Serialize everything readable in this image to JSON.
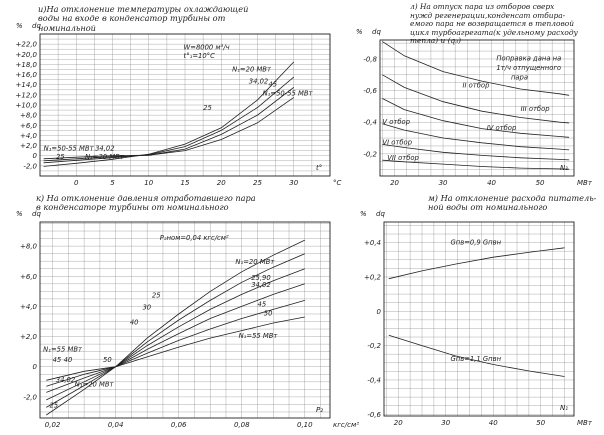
{
  "chart_data": [
    {
      "type": "line",
      "caption": [
        "и)На отклонение температуры охлаждающей",
        "воды на входе  в конденсатор турбины от",
        "номинальной"
      ],
      "y_unit": "%",
      "y_var": "dq",
      "x_var": "t°",
      "x_unit": "°C",
      "xlim": [
        -5,
        35
      ],
      "ylim": [
        -4,
        24
      ],
      "xticks": [
        0,
        5,
        10,
        15,
        20,
        25,
        30
      ],
      "xtick_labels": [
        "0",
        "5",
        "10",
        "15",
        "20",
        "25",
        "30"
      ],
      "yticks": [
        -2,
        0,
        2,
        4,
        6,
        8,
        10,
        12,
        14,
        16,
        18,
        20,
        22
      ],
      "ytick_labels": [
        "-2,0",
        "0",
        "+2,0",
        "+4,0",
        "+6,0",
        "+8,0",
        "+10,0",
        "+12,0",
        "+14,0",
        "+16,0",
        "+18,0",
        "+20,0",
        "+22,0"
      ],
      "grid": true,
      "annotations": [
        {
          "text": "W=8000 м³/ч",
          "x": 14.8,
          "y": 20.9
        },
        {
          "text": "t°₁=10°C",
          "x": 14.8,
          "y": 19.3
        },
        {
          "text": "N₁=20 МВт",
          "x": 21.5,
          "y": 16.6
        },
        {
          "text": "34,02",
          "x": 23.8,
          "y": 14.2
        },
        {
          "text": "N₁=50-55 МВт",
          "x": 25.7,
          "y": 11.9
        },
        {
          "text": "45",
          "x": 26.5,
          "y": 13.6
        },
        {
          "text": "25",
          "x": 17.5,
          "y": 9.0
        },
        {
          "text": "N₁=50-55 МВт",
          "x": -4.5,
          "y": 1.0
        },
        {
          "text": "34,02",
          "x": 2.6,
          "y": 1.0
        },
        {
          "text": "25",
          "x": -2.8,
          "y": -0.6
        },
        {
          "text": "N₁=20 МВт",
          "x": 1.2,
          "y": -0.6
        }
      ],
      "series": [
        {
          "x": [
            -4.5,
            0,
            5,
            10,
            15,
            20,
            25,
            30
          ],
          "values": [
            -2.1,
            -1.5,
            -0.7,
            0.3,
            2.3,
            5.5,
            11,
            18.5
          ]
        },
        {
          "x": [
            -4.5,
            0,
            5,
            10,
            15,
            20,
            25,
            30
          ],
          "values": [
            -1.4,
            -0.9,
            -0.4,
            0.2,
            1.8,
            5,
            9.5,
            15.5
          ]
        },
        {
          "x": [
            -4.5,
            0,
            5,
            10,
            15,
            20,
            25,
            30
          ],
          "values": [
            -1.0,
            -0.6,
            -0.2,
            0.1,
            1.3,
            4.2,
            8,
            13.5
          ]
        },
        {
          "x": [
            -4.5,
            0,
            5,
            10,
            15,
            20,
            25,
            30
          ],
          "values": [
            -0.6,
            -0.3,
            0,
            0.1,
            1,
            3.2,
            6.5,
            11.5
          ]
        }
      ]
    },
    {
      "type": "line",
      "caption": [
        "л) На отпуск пара из отборов сверх",
        "нужд регенерации,конденсат отбира-",
        "емого пара не возвращается в тепловой",
        "цикл турбоагрегата(к удельному расходу",
        "тепла) и (q₃)"
      ],
      "y_unit": "%",
      "y_var": "dq",
      "x_var": "N₁",
      "x_unit": "МВт",
      "xlim": [
        17,
        57
      ],
      "ylim": [
        -0.06,
        -0.92
      ],
      "xticks": [
        20,
        30,
        40,
        50
      ],
      "xtick_labels": [
        "20",
        "30",
        "40",
        "50"
      ],
      "yticks": [
        -0.2,
        -0.4,
        -0.6,
        -0.8
      ],
      "ytick_labels": [
        "-0,2",
        "-0,4",
        "-0,6",
        "-0,8"
      ],
      "grid": true,
      "annotations": [
        {
          "text": "Поправка дана на",
          "x": 41,
          "y": -0.79
        },
        {
          "text": "1т/ч отпущенного",
          "x": 41,
          "y": -0.73
        },
        {
          "text": "пара",
          "x": 44,
          "y": -0.67
        },
        {
          "text": "II отбор",
          "x": 34,
          "y": -0.62
        },
        {
          "text": "III отбор",
          "x": 46,
          "y": -0.47
        },
        {
          "text": "IV отбор",
          "x": 39,
          "y": -0.35
        },
        {
          "text": "V отбор",
          "x": 17.5,
          "y": -0.39
        },
        {
          "text": "VI отбор",
          "x": 17.5,
          "y": -0.26
        },
        {
          "text": "VII отбор",
          "x": 18.5,
          "y": -0.16
        }
      ],
      "series": [
        {
          "x": [
            17.5,
            22,
            30,
            38,
            46,
            54,
            56
          ],
          "values": [
            -0.91,
            -0.82,
            -0.72,
            -0.66,
            -0.61,
            -0.58,
            -0.57
          ]
        },
        {
          "x": [
            17.5,
            22,
            30,
            38,
            46,
            54,
            56
          ],
          "values": [
            -0.7,
            -0.62,
            -0.53,
            -0.47,
            -0.43,
            -0.4,
            -0.395
          ]
        },
        {
          "x": [
            17.5,
            22,
            30,
            38,
            46,
            54,
            56
          ],
          "values": [
            -0.55,
            -0.48,
            -0.41,
            -0.36,
            -0.33,
            -0.31,
            -0.305
          ]
        },
        {
          "x": [
            17.5,
            22,
            30,
            38,
            46,
            54,
            56
          ],
          "values": [
            -0.39,
            -0.35,
            -0.3,
            -0.27,
            -0.245,
            -0.23,
            -0.225
          ]
        },
        {
          "x": [
            17.5,
            22,
            30,
            38,
            46,
            54,
            56
          ],
          "values": [
            -0.26,
            -0.24,
            -0.21,
            -0.19,
            -0.175,
            -0.165,
            -0.162
          ]
        },
        {
          "x": [
            17.5,
            22,
            30,
            38,
            46,
            54,
            56
          ],
          "values": [
            -0.16,
            -0.15,
            -0.135,
            -0.12,
            -0.11,
            -0.105,
            -0.103
          ]
        }
      ]
    },
    {
      "type": "line",
      "caption": [
        "к) На отклонение давления отработавшего пара",
        "в конденсаторе турбины от номинального"
      ],
      "y_unit": "%",
      "y_var": "dq",
      "x_var": "P₂",
      "x_unit": "кгс/см²",
      "xlim": [
        0.016,
        0.108
      ],
      "ylim": [
        -3.4,
        9.6
      ],
      "xticks": [
        0.02,
        0.04,
        0.06,
        0.08,
        0.1
      ],
      "xtick_labels": [
        "0,02",
        "0,04",
        "0,06",
        "0,08",
        "0,10"
      ],
      "yticks": [
        -2,
        0,
        2,
        4,
        6,
        8
      ],
      "ytick_labels": [
        "-2,0",
        "0",
        "+2,0",
        "+4,0",
        "+6,0",
        "+8,0"
      ],
      "grid": true,
      "annotations": [
        {
          "text": "P₂ном=0,04 кгс/см²",
          "x": 0.054,
          "y": 8.4
        },
        {
          "text": "N₁=20 МВт",
          "x": 0.078,
          "y": 6.8
        },
        {
          "text": "25,90",
          "x": 0.083,
          "y": 5.75
        },
        {
          "text": "34,02",
          "x": 0.083,
          "y": 5.3
        },
        {
          "text": "45",
          "x": 0.085,
          "y": 4.0
        },
        {
          "text": "50",
          "x": 0.087,
          "y": 3.4
        },
        {
          "text": "N₁=55 МВт",
          "x": 0.079,
          "y": 1.9
        },
        {
          "text": "25",
          "x": 0.0515,
          "y": 4.6
        },
        {
          "text": "30",
          "x": 0.0485,
          "y": 3.8
        },
        {
          "text": "40",
          "x": 0.0445,
          "y": 2.8
        },
        {
          "text": "N₁=55 МВт",
          "x": 0.017,
          "y": 1.0
        },
        {
          "text": "45",
          "x": 0.02,
          "y": 0.3
        },
        {
          "text": "40",
          "x": 0.0235,
          "y": 0.3
        },
        {
          "text": "50",
          "x": 0.036,
          "y": 0.3
        },
        {
          "text": "34,02",
          "x": 0.021,
          "y": -1.0
        },
        {
          "text": "25",
          "x": 0.019,
          "y": -2.7
        },
        {
          "text": "N₁=20 МВт",
          "x": 0.027,
          "y": -1.3
        }
      ],
      "series": [
        {
          "x": [
            0.018,
            0.03,
            0.04,
            0.05,
            0.06,
            0.07,
            0.08,
            0.09,
            0.1
          ],
          "values": [
            -3.2,
            -1.5,
            0,
            1.9,
            3.5,
            5.0,
            6.3,
            7.4,
            8.4
          ]
        },
        {
          "x": [
            0.018,
            0.03,
            0.04,
            0.05,
            0.06,
            0.07,
            0.08,
            0.09,
            0.1
          ],
          "values": [
            -2.7,
            -1.25,
            0,
            1.65,
            3.1,
            4.4,
            5.6,
            6.6,
            7.5
          ]
        },
        {
          "x": [
            0.018,
            0.03,
            0.04,
            0.05,
            0.06,
            0.07,
            0.08,
            0.09,
            0.1
          ],
          "values": [
            -2.2,
            -1.0,
            0,
            1.4,
            2.65,
            3.8,
            4.8,
            5.7,
            6.5
          ]
        },
        {
          "x": [
            0.018,
            0.03,
            0.04,
            0.05,
            0.06,
            0.07,
            0.08,
            0.09,
            0.1
          ],
          "values": [
            -1.7,
            -0.75,
            0,
            1.15,
            2.2,
            3.2,
            4.0,
            4.8,
            5.5
          ]
        },
        {
          "x": [
            0.018,
            0.03,
            0.04,
            0.05,
            0.06,
            0.07,
            0.08,
            0.09,
            0.1
          ],
          "values": [
            -1.3,
            -0.5,
            0,
            0.9,
            1.75,
            2.5,
            3.2,
            3.8,
            4.4
          ]
        },
        {
          "x": [
            0.018,
            0.03,
            0.04,
            0.05,
            0.06,
            0.07,
            0.08,
            0.09,
            0.1
          ],
          "values": [
            -0.9,
            -0.3,
            0,
            0.65,
            1.3,
            1.9,
            2.4,
            2.9,
            3.3
          ]
        }
      ]
    },
    {
      "type": "line",
      "caption": [
        "м) На отклонение расхода питатель-",
        "ной воды от номинального"
      ],
      "y_unit": "%",
      "y_var": "dq",
      "x_var": "N₁",
      "x_unit": "МВт",
      "xlim": [
        17,
        57
      ],
      "ylim": [
        -0.61,
        0.52
      ],
      "xticks": [
        20,
        30,
        40,
        50
      ],
      "xtick_labels": [
        "20",
        "30",
        "40",
        "50"
      ],
      "yticks": [
        -0.6,
        -0.4,
        -0.2,
        0,
        0.2,
        0.4
      ],
      "ytick_labels": [
        "-0,6",
        "-0,4",
        "-0,2",
        "0",
        "+0,2",
        "+0,4"
      ],
      "grid": true,
      "annotations": [
        {
          "text": "Gпв=0,9 Gпвн",
          "x": 31,
          "y": 0.39
        },
        {
          "text": "Gпв=1,1 Gпвн",
          "x": 31,
          "y": -0.29
        }
      ],
      "series": [
        {
          "x": [
            18,
            25,
            32,
            40,
            48,
            55
          ],
          "values": [
            0.19,
            0.235,
            0.275,
            0.315,
            0.345,
            0.37
          ]
        },
        {
          "x": [
            18,
            25,
            32,
            40,
            48,
            55
          ],
          "values": [
            -0.14,
            -0.2,
            -0.26,
            -0.31,
            -0.35,
            -0.38
          ]
        }
      ]
    }
  ]
}
